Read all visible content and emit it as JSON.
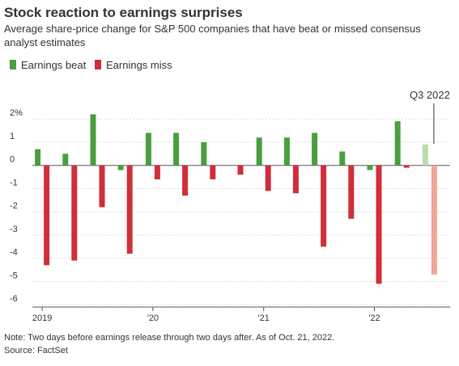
{
  "chart_data": {
    "type": "bar",
    "title": "Stock reaction to earnings surprises",
    "subtitle": [
      "Average share-price change for S&P 500 companies that have beat or missed consensus",
      "analyst estimates"
    ],
    "categories": [
      "2019",
      null,
      null,
      null,
      "'20",
      null,
      null,
      null,
      "'21",
      null,
      null,
      null,
      "'22",
      null,
      null
    ],
    "series": [
      {
        "name": "Earnings beat",
        "color": "#4a9e3f",
        "highlight_color": "#b9dcae",
        "values": [
          0.7,
          0.5,
          2.2,
          -0.2,
          1.4,
          1.4,
          1.0,
          0,
          1.2,
          1.2,
          1.4,
          0.6,
          -0.2,
          1.9,
          0.9
        ]
      },
      {
        "name": "Earnings miss",
        "color": "#d12d3a",
        "highlight_color": "#f3a597",
        "values": [
          -4.3,
          -4.1,
          -1.8,
          -3.8,
          -0.6,
          -1.3,
          -0.6,
          -0.4,
          -1.1,
          -1.2,
          -3.5,
          -2.3,
          -5.1,
          -0.1,
          -4.7
        ]
      }
    ],
    "annotation": {
      "text": "Q3 2022",
      "category": 14
    },
    "ylim": [
      -6.1,
      2.6
    ],
    "yticks": [
      {
        "value": 2,
        "label": "2%"
      },
      1,
      0,
      -1,
      -2,
      -3,
      -4,
      -5,
      -6
    ],
    "grid": true,
    "note": "Note: Two days before earnings release through two days after. As of Oct. 21, 2022.",
    "source": "Source: FactSet"
  }
}
